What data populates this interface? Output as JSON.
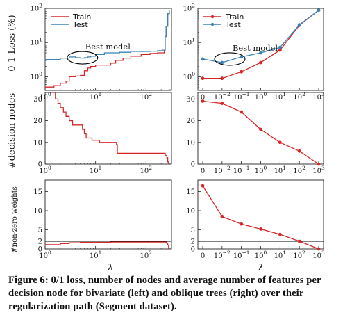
{
  "colors": {
    "train": "#d62728",
    "test": "#3b82b5",
    "reference": "#000000",
    "axes": "#222222"
  },
  "figure": {
    "caption": "Figure 6: 0/1 loss, number of nodes and average number of features per decision node for bivariate (left) and oblique trees (right) over their regularization path (Segment dataset).",
    "xlabel": "λ"
  },
  "chart_data": [
    {
      "id": "loss-bivariate",
      "type": "line",
      "ylabel": "0-1 Loss (%)",
      "xscale": "log",
      "yscale": "log",
      "xlim": [
        1,
        320
      ],
      "ylim": [
        0.4,
        100
      ],
      "grid": false,
      "xticks": [
        {
          "v": 1,
          "base": "10",
          "exp": "0"
        },
        {
          "v": 10,
          "base": "10",
          "exp": "1"
        },
        {
          "v": 100,
          "base": "10",
          "exp": "2"
        }
      ],
      "yticks": [
        {
          "v": 1,
          "base": "10",
          "exp": "0"
        },
        {
          "v": 10,
          "base": "10",
          "exp": "1"
        },
        {
          "v": 100,
          "base": "10",
          "exp": "2"
        }
      ],
      "legend": {
        "position": "top-left",
        "entries": [
          "Train",
          "Test"
        ]
      },
      "annotation": {
        "text": "Best model",
        "ellipse_center": [
          5.5,
          3.6
        ]
      },
      "series": [
        {
          "name": "Train",
          "color": "train",
          "markers": false,
          "x": [
            1,
            1.5,
            2,
            2.6,
            3,
            4,
            5,
            6,
            7,
            8,
            10,
            15,
            20,
            25,
            35,
            50,
            80,
            120,
            170,
            210,
            230,
            240,
            250,
            270,
            290
          ],
          "y": [
            0.5,
            0.55,
            0.65,
            0.75,
            1.0,
            1.05,
            1.1,
            1.5,
            1.8,
            2.0,
            2.2,
            2.2,
            2.5,
            3.0,
            3.5,
            4.0,
            4.5,
            4.8,
            5.0,
            5.0,
            6.0,
            15,
            30,
            70,
            80
          ]
        },
        {
          "name": "Test",
          "color": "test",
          "markers": false,
          "x": [
            1,
            2,
            3,
            4,
            5,
            6,
            7,
            8,
            10,
            15,
            20,
            30,
            50,
            80,
            120,
            170,
            210,
            230,
            240,
            250,
            270,
            290
          ],
          "y": [
            3.2,
            3.5,
            3.8,
            3.6,
            3.5,
            3.6,
            3.8,
            4.0,
            4.5,
            5.0,
            5.0,
            5.2,
            5.5,
            5.5,
            5.6,
            5.8,
            6.0,
            6.0,
            15,
            30,
            70,
            85
          ]
        }
      ]
    },
    {
      "id": "loss-oblique",
      "type": "line",
      "ylabel": "",
      "xscale": "categorical",
      "yscale": "log",
      "ylim": [
        0.4,
        100
      ],
      "grid": false,
      "xticks": [
        {
          "base": "0",
          "exp": ""
        },
        {
          "base": "10",
          "exp": "−2"
        },
        {
          "base": "10",
          "exp": "−1"
        },
        {
          "base": "10",
          "exp": "0"
        },
        {
          "base": "10",
          "exp": "1"
        },
        {
          "base": "10",
          "exp": "2"
        },
        {
          "base": "10",
          "exp": "3"
        }
      ],
      "yticks": [
        {
          "v": 1,
          "base": "10",
          "exp": "0"
        },
        {
          "v": 10,
          "base": "10",
          "exp": "1"
        },
        {
          "v": 100,
          "base": "10",
          "exp": "2"
        }
      ],
      "legend": {
        "position": "top-left",
        "entries": [
          "Train",
          "Test"
        ]
      },
      "annotation": {
        "text": "Best model",
        "ellipse_center": [
          1.4,
          3.3
        ]
      },
      "series": [
        {
          "name": "Train",
          "color": "train",
          "markers": true,
          "x": [
            0,
            1,
            2,
            3,
            4,
            5,
            6
          ],
          "y": [
            0.9,
            0.9,
            1.4,
            2.6,
            6.0,
            32,
            88
          ]
        },
        {
          "name": "Test",
          "color": "test",
          "markers": true,
          "x": [
            0,
            1,
            2,
            3,
            4,
            5,
            6
          ],
          "y": [
            3.3,
            2.6,
            3.8,
            5.0,
            7.2,
            33,
            88
          ]
        }
      ]
    },
    {
      "id": "nodes-bivariate",
      "type": "line",
      "ylabel": "#decision nodes",
      "xscale": "log",
      "yscale": "linear",
      "xlim": [
        1,
        320
      ],
      "ylim": [
        0,
        33
      ],
      "grid": false,
      "xticks": [
        {
          "v": 1,
          "base": "10",
          "exp": "0"
        },
        {
          "v": 10,
          "base": "10",
          "exp": "1"
        },
        {
          "v": 100,
          "base": "10",
          "exp": "2"
        }
      ],
      "yticks": [
        {
          "v": 0,
          "label": "0"
        },
        {
          "v": 10,
          "label": "10"
        },
        {
          "v": 20,
          "label": "20"
        },
        {
          "v": 30,
          "label": "30"
        }
      ],
      "series": [
        {
          "name": "",
          "color": "train",
          "markers": false,
          "x": [
            1.4,
            1.6,
            1.8,
            2,
            2.3,
            2.6,
            3,
            3.5,
            4,
            4.8,
            5.5,
            6,
            6.5,
            7,
            7.5,
            8.5,
            10,
            12,
            15,
            18,
            22,
            25,
            26,
            27,
            30,
            40,
            60,
            80,
            100,
            130,
            160,
            200,
            230,
            240,
            250,
            260,
            270,
            280
          ],
          "y": [
            33,
            30,
            28,
            26,
            24,
            22,
            20,
            18,
            18,
            18,
            16,
            14,
            12,
            12,
            12,
            11,
            11,
            10,
            10,
            10,
            10,
            10,
            9,
            5,
            5,
            5,
            5,
            5,
            5,
            5,
            5,
            5,
            5,
            4,
            4,
            3,
            1,
            0
          ]
        }
      ]
    },
    {
      "id": "nodes-oblique",
      "type": "line",
      "ylabel": "",
      "xscale": "categorical",
      "yscale": "linear",
      "ylim": [
        0,
        33
      ],
      "grid": false,
      "xticks": [
        {
          "base": "0",
          "exp": ""
        },
        {
          "base": "10",
          "exp": "−2"
        },
        {
          "base": "10",
          "exp": "−1"
        },
        {
          "base": "10",
          "exp": "0"
        },
        {
          "base": "10",
          "exp": "1"
        },
        {
          "base": "10",
          "exp": "2"
        },
        {
          "base": "10",
          "exp": "3"
        }
      ],
      "yticks": [
        {
          "v": 0,
          "label": "0"
        },
        {
          "v": 10,
          "label": "10"
        },
        {
          "v": 20,
          "label": "20"
        },
        {
          "v": 30,
          "label": "30"
        }
      ],
      "series": [
        {
          "name": "",
          "color": "train",
          "markers": true,
          "x": [
            0,
            1,
            2,
            3,
            4,
            5,
            6
          ],
          "y": [
            29,
            28,
            24,
            16,
            10,
            6,
            0
          ]
        }
      ]
    },
    {
      "id": "weights-bivariate",
      "type": "line",
      "ylabel": "#non-zero weights",
      "xscale": "log",
      "yscale": "linear",
      "xlim": [
        1,
        320
      ],
      "ylim": [
        0,
        18
      ],
      "grid": false,
      "xticks": [
        {
          "v": 1,
          "base": "10",
          "exp": "0"
        },
        {
          "v": 10,
          "base": "10",
          "exp": "1"
        },
        {
          "v": 100,
          "base": "10",
          "exp": "2"
        }
      ],
      "yticks": [
        {
          "v": 0,
          "label": "0"
        },
        {
          "v": 2,
          "label": "2"
        },
        {
          "v": 5,
          "label": "5"
        },
        {
          "v": 10,
          "label": "10"
        },
        {
          "v": 15,
          "label": "15"
        }
      ],
      "hline": 2,
      "series": [
        {
          "name": "",
          "color": "train",
          "markers": false,
          "x": [
            1,
            2,
            3,
            5,
            10,
            20,
            50,
            100,
            200,
            240,
            250,
            260,
            270,
            280
          ],
          "y": [
            1.1,
            1.4,
            1.6,
            1.7,
            1.7,
            1.8,
            1.8,
            1.8,
            1.8,
            1.8,
            1.7,
            1.5,
            1.0,
            0
          ]
        }
      ]
    },
    {
      "id": "weights-oblique",
      "type": "line",
      "ylabel": "",
      "xscale": "categorical",
      "yscale": "linear",
      "ylim": [
        0,
        18
      ],
      "grid": false,
      "xticks": [
        {
          "base": "0",
          "exp": ""
        },
        {
          "base": "10",
          "exp": "−2"
        },
        {
          "base": "10",
          "exp": "−1"
        },
        {
          "base": "10",
          "exp": "0"
        },
        {
          "base": "10",
          "exp": "1"
        },
        {
          "base": "10",
          "exp": "2"
        },
        {
          "base": "10",
          "exp": "3"
        }
      ],
      "yticks": [
        {
          "v": 0,
          "label": "0"
        },
        {
          "v": 2,
          "label": "2"
        },
        {
          "v": 5,
          "label": "5"
        },
        {
          "v": 10,
          "label": "10"
        },
        {
          "v": 15,
          "label": "15"
        }
      ],
      "hline": 2,
      "series": [
        {
          "name": "",
          "color": "train",
          "markers": true,
          "x": [
            0,
            1,
            2,
            3,
            4,
            5,
            6
          ],
          "y": [
            16.5,
            8.5,
            6.5,
            5.2,
            3.8,
            2.0,
            0
          ]
        }
      ]
    }
  ]
}
